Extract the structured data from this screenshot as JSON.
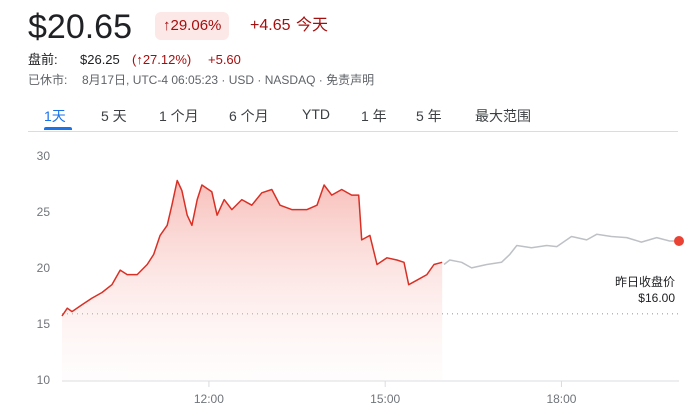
{
  "header": {
    "price": "$20.65",
    "change_pct": "↑29.06%",
    "change": "+4.65",
    "period": "今天"
  },
  "extended": {
    "label": "盘前:",
    "price": "$26.25",
    "change_pct": "(↑27.12%)",
    "change": "+5.60"
  },
  "status": {
    "label": "已休市:",
    "meta": "8月17日, UTC-4 06:05:23 · USD · NASDAQ · ",
    "disclaimer": "免责声明"
  },
  "tabs": [
    "1天",
    "5 天",
    "1 个月",
    "6 个月",
    "YTD",
    "1 年",
    "5 年",
    "最大范围"
  ],
  "chart_data": {
    "type": "line",
    "xlim": [
      9.5,
      20
    ],
    "ylim": [
      10,
      30
    ],
    "xticks": [
      {
        "value": 12,
        "label": "12:00"
      },
      {
        "value": 15,
        "label": "15:00"
      },
      {
        "value": 18,
        "label": "18:00"
      }
    ],
    "yticks": [
      10,
      15,
      20,
      25,
      30
    ],
    "grid": false,
    "previous_close": {
      "value": 16,
      "label": "昨日收盘价 $16.00"
    },
    "series": [
      {
        "color": "#d93025",
        "fill": true,
        "x": [
          9.5,
          9.59,
          9.67,
          9.84,
          10.01,
          10.18,
          10.35,
          10.49,
          10.61,
          10.78,
          10.95,
          11.06,
          11.17,
          11.29,
          11.37,
          11.46,
          11.54,
          11.63,
          11.71,
          11.8,
          11.88,
          12.05,
          12.14,
          12.26,
          12.39,
          12.56,
          12.73,
          12.9,
          13.07,
          13.21,
          13.41,
          13.67,
          13.84,
          13.96,
          14.09,
          14.26,
          14.43,
          14.55,
          14.6,
          14.74,
          14.86,
          15.03,
          15.2,
          15.32,
          15.4,
          15.54,
          15.71,
          15.83,
          15.97
        ],
        "values": [
          15.8,
          16.5,
          16.2,
          16.8,
          17.4,
          17.9,
          18.6,
          19.9,
          19.5,
          19.5,
          20.4,
          21.3,
          23.0,
          23.9,
          25.7,
          27.9,
          27.0,
          24.8,
          23.9,
          26.2,
          27.5,
          26.9,
          24.8,
          26.2,
          25.3,
          26.2,
          25.7,
          26.8,
          27.1,
          25.7,
          25.3,
          25.3,
          25.7,
          27.5,
          26.6,
          27.1,
          26.6,
          26.6,
          22.6,
          23.0,
          20.4,
          21.0,
          20.8,
          20.6,
          18.6,
          19.0,
          19.5,
          20.4,
          20.6
        ]
      },
      {
        "color": "#bdc1c6",
        "fill": false,
        "end_dot": "#ea4335",
        "x": [
          16.0,
          16.1,
          16.3,
          16.47,
          16.73,
          16.98,
          17.12,
          17.24,
          17.49,
          17.75,
          17.92,
          18.17,
          18.43,
          18.6,
          18.85,
          19.11,
          19.36,
          19.62,
          19.84,
          20.0
        ],
        "values": [
          20.4,
          20.8,
          20.6,
          20.1,
          20.4,
          20.6,
          21.3,
          22.1,
          21.9,
          22.1,
          22.0,
          22.9,
          22.6,
          23.1,
          22.9,
          22.8,
          22.4,
          22.8,
          22.5,
          22.5
        ]
      }
    ]
  }
}
